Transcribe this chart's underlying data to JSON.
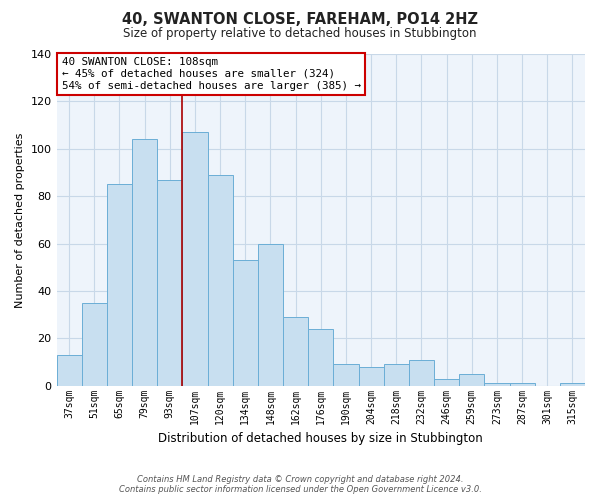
{
  "title": "40, SWANTON CLOSE, FAREHAM, PO14 2HZ",
  "subtitle": "Size of property relative to detached houses in Stubbington",
  "xlabel": "Distribution of detached houses by size in Stubbington",
  "ylabel": "Number of detached properties",
  "categories": [
    "37sqm",
    "51sqm",
    "65sqm",
    "79sqm",
    "93sqm",
    "107sqm",
    "120sqm",
    "134sqm",
    "148sqm",
    "162sqm",
    "176sqm",
    "190sqm",
    "204sqm",
    "218sqm",
    "232sqm",
    "246sqm",
    "259sqm",
    "273sqm",
    "287sqm",
    "301sqm",
    "315sqm"
  ],
  "values": [
    13,
    35,
    85,
    104,
    87,
    107,
    89,
    53,
    60,
    29,
    24,
    9,
    8,
    9,
    11,
    3,
    5,
    1,
    1,
    0,
    1
  ],
  "bar_color": "#c8dff0",
  "bar_edge_color": "#6baed6",
  "vline_x_index": 5,
  "vline_color": "#aa0000",
  "annotation_title": "40 SWANTON CLOSE: 108sqm",
  "annotation_line1": "← 45% of detached houses are smaller (324)",
  "annotation_line2": "54% of semi-detached houses are larger (385) →",
  "annotation_box_edge": "#cc0000",
  "ylim": [
    0,
    140
  ],
  "yticks": [
    0,
    20,
    40,
    60,
    80,
    100,
    120,
    140
  ],
  "footer_line1": "Contains HM Land Registry data © Crown copyright and database right 2024.",
  "footer_line2": "Contains public sector information licensed under the Open Government Licence v3.0.",
  "background_color": "#ffffff",
  "plot_bg_color": "#eef4fb",
  "grid_color": "#c8d8e8"
}
